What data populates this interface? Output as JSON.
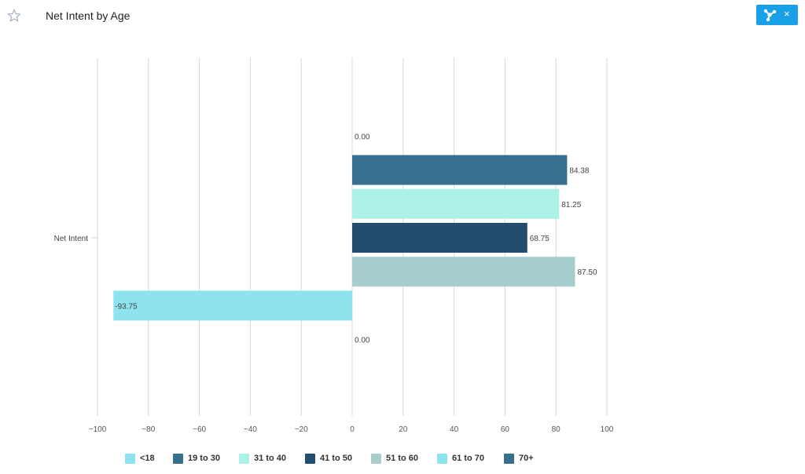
{
  "header": {
    "title": "Net Intent by Age",
    "star_icon": "star-outline-icon",
    "action_icon": "network-icon",
    "close_label": "×",
    "accent_color": "#1aa0e6"
  },
  "chart_data": {
    "type": "bar",
    "orientation": "horizontal",
    "categories": [
      "Net Intent"
    ],
    "series": [
      {
        "name": "<18",
        "values": [
          0.0
        ],
        "label": "0.00",
        "color": "#8ce3ee"
      },
      {
        "name": "19 to 30",
        "values": [
          84.38
        ],
        "label": "84.38",
        "color": "#37708e"
      },
      {
        "name": "31 to 40",
        "values": [
          81.25
        ],
        "label": "81.25",
        "color": "#acf1e8"
      },
      {
        "name": "41 to 50",
        "values": [
          68.75
        ],
        "label": "68.75",
        "color": "#234d6e"
      },
      {
        "name": "51 to 60",
        "values": [
          87.5
        ],
        "label": "87.50",
        "color": "#a7cecc"
      },
      {
        "name": "61 to 70",
        "values": [
          -93.75
        ],
        "label": "-93.75",
        "color": "#8ee3ee"
      },
      {
        "name": "70+",
        "values": [
          0.0
        ],
        "label": "0.00",
        "color": "#37708e"
      }
    ],
    "xlim": [
      -100,
      100
    ],
    "xticks": [
      "−100",
      "−80",
      "−60",
      "−40",
      "−20",
      "0",
      "20",
      "40",
      "60",
      "80",
      "100"
    ],
    "xtick_values": [
      -100,
      -80,
      -60,
      -40,
      -20,
      0,
      20,
      40,
      60,
      80,
      100
    ],
    "grid": true,
    "legend_position": "bottom"
  }
}
